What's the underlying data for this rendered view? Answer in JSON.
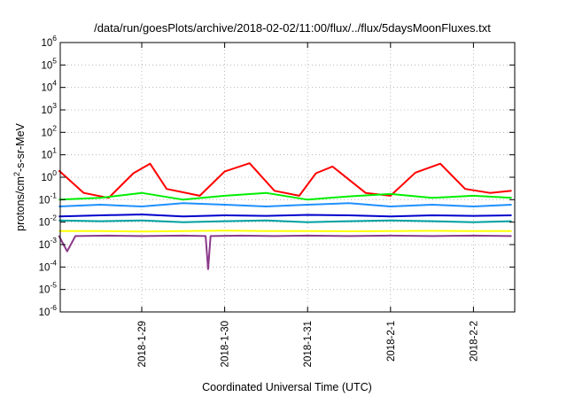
{
  "chart_data": {
    "type": "line",
    "title": "/data/run/goesPlots/archive/2018-02-02/11:00/flux/../flux/5daysMoonFluxes.txt",
    "xlabel": "Coordinated Universal Time (UTC)",
    "ylabel_main": "protons/cm",
    "ylabel_sup": "2",
    "ylabel_rest": "-s-sr-MeV",
    "y_scale": "log",
    "ylim": [
      1e-06,
      1000000.0
    ],
    "y_ticks": [
      {
        "base": "10",
        "exp": "6"
      },
      {
        "base": "10",
        "exp": "5"
      },
      {
        "base": "10",
        "exp": "4"
      },
      {
        "base": "10",
        "exp": "3"
      },
      {
        "base": "10",
        "exp": "2"
      },
      {
        "base": "10",
        "exp": "1"
      },
      {
        "base": "10",
        "exp": "0"
      },
      {
        "base": "10",
        "exp": "-1"
      },
      {
        "base": "10",
        "exp": "-2"
      },
      {
        "base": "10",
        "exp": "-3"
      },
      {
        "base": "10",
        "exp": "-4"
      },
      {
        "base": "10",
        "exp": "-5"
      },
      {
        "base": "10",
        "exp": "-6"
      }
    ],
    "xlim": [
      "2018-01-28 00:00",
      "2018-02-02 11:00"
    ],
    "x_ticks": [
      "2018-1-29",
      "2018-1-30",
      "2018-1-31",
      "2018-2-1",
      "2018-2-2"
    ],
    "grid": true,
    "legend": "none",
    "series": [
      {
        "color": "#ff0000",
        "x_days": [
          0,
          0.3,
          0.6,
          0.9,
          1.1,
          1.3,
          1.7,
          2.0,
          2.3,
          2.6,
          2.9,
          3.1,
          3.3,
          3.7,
          4.0,
          4.3,
          4.6,
          4.9,
          5.2,
          5.46
        ],
        "values": [
          2.0,
          0.2,
          0.12,
          1.5,
          4.0,
          0.3,
          0.15,
          1.8,
          4.2,
          0.25,
          0.15,
          1.5,
          3.0,
          0.2,
          0.15,
          1.6,
          4.0,
          0.3,
          0.2,
          0.25
        ]
      },
      {
        "color": "#00ee00",
        "x_days": [
          0,
          0.5,
          1.0,
          1.5,
          2.0,
          2.5,
          3.0,
          3.5,
          4.0,
          4.5,
          5.0,
          5.46
        ],
        "values": [
          0.1,
          0.12,
          0.2,
          0.1,
          0.15,
          0.2,
          0.1,
          0.14,
          0.18,
          0.12,
          0.15,
          0.12
        ]
      },
      {
        "color": "#1e90ff",
        "x_days": [
          0,
          0.5,
          1.0,
          1.5,
          2.0,
          2.5,
          3.0,
          3.5,
          4.0,
          4.5,
          5.0,
          5.46
        ],
        "values": [
          0.05,
          0.06,
          0.05,
          0.07,
          0.06,
          0.05,
          0.06,
          0.07,
          0.05,
          0.06,
          0.05,
          0.06
        ]
      },
      {
        "color": "#0000cc",
        "x_days": [
          0,
          0.5,
          1.0,
          1.5,
          2.0,
          2.5,
          3.0,
          3.5,
          4.0,
          4.5,
          5.0,
          5.46
        ],
        "values": [
          0.018,
          0.02,
          0.022,
          0.018,
          0.02,
          0.019,
          0.021,
          0.02,
          0.018,
          0.02,
          0.019,
          0.02
        ]
      },
      {
        "color": "#00a0a0",
        "x_days": [
          0,
          0.5,
          1.0,
          1.5,
          2.0,
          2.5,
          3.0,
          3.5,
          4.0,
          4.5,
          5.0,
          5.46
        ],
        "values": [
          0.012,
          0.011,
          0.012,
          0.01,
          0.011,
          0.012,
          0.01,
          0.011,
          0.012,
          0.011,
          0.01,
          0.011
        ]
      },
      {
        "color": "#ffff00",
        "x_days": [
          0,
          0.5,
          1.0,
          1.5,
          2.0,
          2.5,
          3.0,
          3.5,
          4.0,
          4.5,
          5.0,
          5.46
        ],
        "values": [
          0.004,
          0.004,
          0.0038,
          0.004,
          0.0042,
          0.004,
          0.004,
          0.0039,
          0.004,
          0.0041,
          0.004,
          0.004
        ]
      },
      {
        "color": "#8b3a8b",
        "x_days": [
          0,
          0.1,
          0.2,
          0.6,
          1.0,
          1.5,
          1.77,
          1.8,
          1.83,
          2.2,
          2.6,
          3.0,
          3.5,
          4.0,
          4.5,
          5.0,
          5.46
        ],
        "values": [
          0.0025,
          0.0005,
          0.0024,
          0.0025,
          0.0024,
          0.0025,
          0.0024,
          8e-05,
          0.0024,
          0.0025,
          0.0024,
          0.0025,
          0.0024,
          0.0025,
          0.0024,
          0.0025,
          0.0024
        ]
      }
    ]
  }
}
